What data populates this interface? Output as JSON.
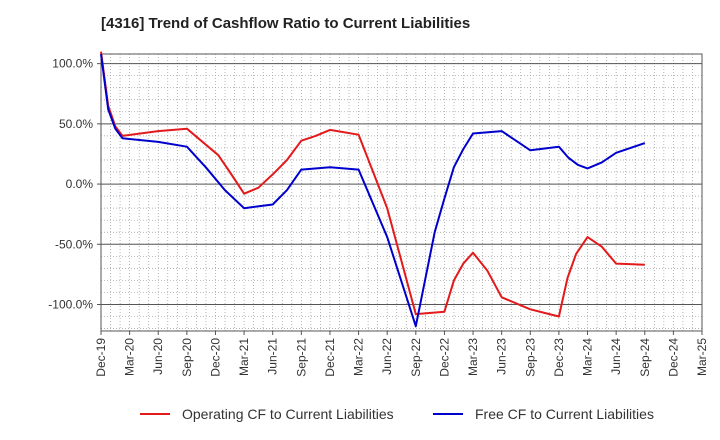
{
  "chart_data": {
    "type": "line",
    "title": "[4316]  Trend of Cashflow Ratio to Current Liabilities",
    "xlabel": "",
    "ylabel": "",
    "ylim": [
      -122,
      108
    ],
    "grid": true,
    "legend_position": "bottom",
    "x_ticks": [
      "Dec-19",
      "Mar-20",
      "Jun-20",
      "Sep-20",
      "Dec-20",
      "Mar-21",
      "Jun-21",
      "Sep-21",
      "Dec-21",
      "Mar-22",
      "Jun-22",
      "Sep-22",
      "Dec-22",
      "Mar-23",
      "Jun-23",
      "Sep-23",
      "Dec-23",
      "Mar-24",
      "Jun-24",
      "Sep-24",
      "Dec-24",
      "Mar-25"
    ],
    "y_ticks": [
      {
        "value": 100,
        "label": "100.0%"
      },
      {
        "value": 50,
        "label": "50.0%"
      },
      {
        "value": 0,
        "label": "0.0%"
      },
      {
        "value": -50,
        "label": "-50.0%"
      },
      {
        "value": -100,
        "label": "-100.0%"
      }
    ],
    "series": [
      {
        "name": "Operating CF to Current Liabilities",
        "color": "#e31a1c",
        "points": [
          [
            0,
            110
          ],
          [
            0.25,
            65
          ],
          [
            0.5,
            48
          ],
          [
            0.75,
            40
          ],
          [
            2,
            44
          ],
          [
            3,
            46
          ],
          [
            4.1,
            24
          ],
          [
            4.5,
            10
          ],
          [
            5,
            -8
          ],
          [
            5.5,
            -3
          ],
          [
            6,
            8
          ],
          [
            6.5,
            20
          ],
          [
            7,
            36
          ],
          [
            7.5,
            40
          ],
          [
            8,
            45
          ],
          [
            9,
            41
          ],
          [
            10,
            -20
          ],
          [
            11,
            -108
          ],
          [
            12,
            -106
          ],
          [
            12.33,
            -80
          ],
          [
            12.66,
            -66
          ],
          [
            13,
            -57
          ],
          [
            13.5,
            -72
          ],
          [
            14,
            -94
          ],
          [
            15,
            -104
          ],
          [
            16,
            -110
          ],
          [
            16.3,
            -78
          ],
          [
            16.6,
            -58
          ],
          [
            17,
            -44
          ],
          [
            17.5,
            -52
          ],
          [
            18,
            -66
          ],
          [
            19,
            -67
          ]
        ]
      },
      {
        "name": "Free CF to Current Liabilities",
        "color": "#0000cc",
        "points": [
          [
            0,
            108
          ],
          [
            0.25,
            62
          ],
          [
            0.5,
            46
          ],
          [
            0.75,
            38
          ],
          [
            2,
            35
          ],
          [
            3,
            31
          ],
          [
            3.66,
            14
          ],
          [
            4.33,
            -5
          ],
          [
            5,
            -20
          ],
          [
            6,
            -17
          ],
          [
            6.5,
            -5
          ],
          [
            7,
            12
          ],
          [
            8,
            14
          ],
          [
            9,
            12
          ],
          [
            10,
            -44
          ],
          [
            11,
            -118
          ],
          [
            11.66,
            -40
          ],
          [
            12,
            -12
          ],
          [
            12.33,
            14
          ],
          [
            12.66,
            29
          ],
          [
            13,
            42
          ],
          [
            14,
            44
          ],
          [
            15,
            28
          ],
          [
            16,
            31
          ],
          [
            16.33,
            22
          ],
          [
            16.66,
            16
          ],
          [
            17,
            13
          ],
          [
            17.5,
            18
          ],
          [
            18,
            26
          ],
          [
            19,
            34
          ]
        ]
      }
    ]
  }
}
